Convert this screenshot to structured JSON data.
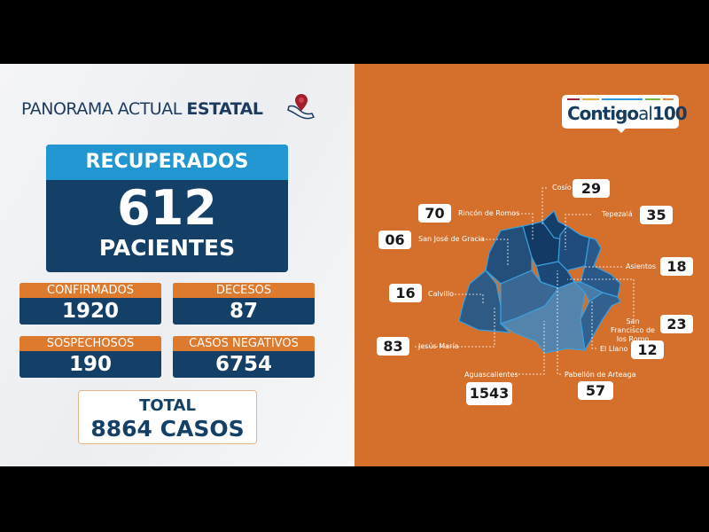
{
  "header": {
    "title_light": "PANORAMA ACTUAL ",
    "title_bold": "ESTATAL"
  },
  "recuperados": {
    "label": "RECUPERADOS",
    "value": "612",
    "unit": "PACIENTES"
  },
  "stats": [
    {
      "label": "CONFIRMADOS",
      "value": "1920"
    },
    {
      "label": "DECESOS",
      "value": "87"
    },
    {
      "label": "SOSPECHOSOS",
      "value": "190"
    },
    {
      "label": "CASOS NEGATIVOS",
      "value": "6754"
    }
  ],
  "total": {
    "label": "TOTAL",
    "value": "8864 CASOS"
  },
  "logo": {
    "text_bold": "Contigo",
    "text_light": "al",
    "text_num": "100",
    "bar_colors": [
      "#9b2335",
      "#e3b23c",
      "#2a9bd6",
      "#7cb342",
      "#e08a4e"
    ]
  },
  "colors": {
    "orange": "#d4702b",
    "navy": "#143f66",
    "blue": "#2196d0"
  },
  "municipios": [
    {
      "name": "Cosío",
      "value": "29"
    },
    {
      "name": "Rincón de Romos",
      "value": "70"
    },
    {
      "name": "Tepezalá",
      "value": "35"
    },
    {
      "name": "San José de Gracia",
      "value": "06"
    },
    {
      "name": "Asientos",
      "value": "18"
    },
    {
      "name": "Calvillo",
      "value": "16"
    },
    {
      "name": "San Francisco de los Romo",
      "value": "23"
    },
    {
      "name": "Jesús María",
      "value": "83"
    },
    {
      "name": "El Llano",
      "value": "12"
    },
    {
      "name": "Aguascalientes",
      "value": "1543"
    },
    {
      "name": "Pabellón de Arteaga",
      "value": "57"
    }
  ]
}
